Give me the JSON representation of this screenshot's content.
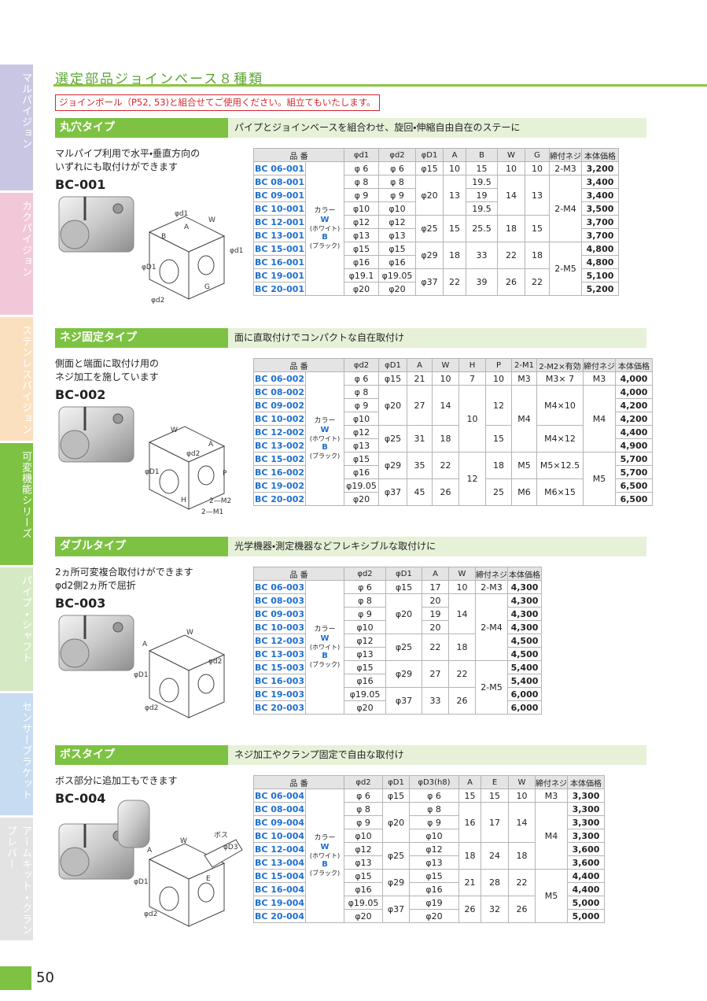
{
  "sidebar": [
    "マルパイジョン",
    "カクパイジョン",
    "ステンレスパイジョン",
    "可変機能シリーズ",
    "パイプ・シャフト",
    "センサーブラケット",
    "アームキット・クランプレバー"
  ],
  "heading": "選定部品ジョインベース８種類",
  "notice": "ジョインボール（P52, 53)と組合せてご使用ください。組立てもいたします。",
  "sections": [
    {
      "title": "丸穴タイプ",
      "subtitle": "パイプとジョインベースを組合わせ、旋回・伸縮自由自在のステーに",
      "description": [
        "マルパイプ利用で水平・垂直方向の",
        "いずれにも取付けができます"
      ],
      "model": "BC-001",
      "diagram_labels": [
        "φd1",
        "W",
        "A",
        "B",
        "φd1",
        "φD1",
        "G",
        "φd2"
      ],
      "table": {
        "headers": [
          "品 番",
          "φd1",
          "φd2",
          "φD1",
          "A",
          "B",
          "W",
          "G",
          "締付ネジ",
          "本体価格"
        ],
        "rows": [
          [
            "BC 06-001",
            {
              "label": "カラー",
              "white_code": "W",
              "white_name": "(ホワイト)",
              "black_code": "B",
              "black_name": "(ブラック)"
            },
            "φ 6",
            "φ 6",
            "φ15",
            "10",
            "15",
            "10",
            "10",
            "2-M3",
            "3,200"
          ],
          [
            "BC 08-001",
            null,
            "φ 8",
            "φ 8",
            "φ20",
            "13",
            "19.5",
            "14",
            "13",
            "2-M4",
            "3,400"
          ],
          [
            "BC 09-001",
            null,
            "φ 9",
            "φ 9",
            null,
            null,
            "19",
            null,
            null,
            null,
            "3,400"
          ],
          [
            "BC 10-001",
            null,
            "φ10",
            "φ10",
            null,
            null,
            "19.5",
            null,
            null,
            null,
            "3,500"
          ],
          [
            "BC 12-001",
            null,
            "φ12",
            "φ12",
            "φ25",
            "15",
            "25.5",
            "18",
            "15",
            null,
            "3,700"
          ],
          [
            "BC 13-001",
            null,
            "φ13",
            "φ13",
            null,
            null,
            null,
            null,
            null,
            null,
            "3,700"
          ],
          [
            "BC 15-001",
            null,
            "φ15",
            "φ15",
            "φ29",
            "18",
            "33",
            "22",
            "18",
            "2-M5",
            "4,800"
          ],
          [
            "BC 16-001",
            null,
            "φ16",
            "φ16",
            null,
            null,
            null,
            null,
            null,
            null,
            "4,800"
          ],
          [
            "BC 19-001",
            null,
            "φ19.1",
            "φ19.05",
            "φ37",
            "22",
            "39",
            "26",
            "22",
            null,
            "5,100"
          ],
          [
            "BC 20-001",
            null,
            "φ20",
            "φ20",
            null,
            null,
            null,
            null,
            null,
            null,
            "5,200"
          ]
        ]
      }
    },
    {
      "title": "ネジ固定タイプ",
      "subtitle": "面に直取付けでコンパクトな自在取付け",
      "description": [
        "側面と端面に取付け用の",
        "ネジ加工を施しています"
      ],
      "model": "BC-002",
      "diagram_labels": [
        "W",
        "A",
        "φd2",
        "φD1",
        "P",
        "H",
        "2—M2",
        "2—M1"
      ],
      "table": {
        "headers": [
          "品 番",
          "φd2",
          "φD1",
          "A",
          "W",
          "H",
          "P",
          "2-M1",
          "2-M2×有効",
          "締付ネジ",
          "本体価格"
        ],
        "rows": [
          [
            "BC 06-002",
            {
              "label": "カラー",
              "white_code": "W",
              "white_name": "(ホワイト)",
              "black_code": "B",
              "black_name": "(ブラック)"
            },
            "φ 6",
            "φ15",
            "21",
            "10",
            "7",
            "10",
            "M3",
            "M3× 7",
            "M3",
            "4,000"
          ],
          [
            "BC 08-002",
            null,
            "φ 8",
            "φ20",
            "27",
            "14",
            "10",
            "12",
            "M4",
            "M4×10",
            "M4",
            "4,000"
          ],
          [
            "BC 09-002",
            null,
            "φ 9",
            null,
            null,
            null,
            null,
            null,
            null,
            null,
            null,
            "4,200"
          ],
          [
            "BC 10-002",
            null,
            "φ10",
            null,
            null,
            null,
            null,
            null,
            null,
            null,
            null,
            "4,200"
          ],
          [
            "BC 12-002",
            null,
            "φ12",
            "φ25",
            "31",
            "18",
            null,
            "15",
            null,
            "M4×12",
            null,
            "4,400"
          ],
          [
            "BC 13-002",
            null,
            "φ13",
            null,
            null,
            null,
            null,
            null,
            null,
            null,
            null,
            "4,900"
          ],
          [
            "BC 15-002",
            null,
            "φ15",
            "φ29",
            "35",
            "22",
            "12",
            "18",
            "M5",
            "M5×12.5",
            "M5",
            "5,700"
          ],
          [
            "BC 16-002",
            null,
            "φ16",
            null,
            null,
            null,
            null,
            null,
            null,
            null,
            null,
            "5,700"
          ],
          [
            "BC 19-002",
            null,
            "φ19.05",
            "φ37",
            "45",
            "26",
            null,
            "25",
            "M6",
            "M6×15",
            null,
            "6,500"
          ],
          [
            "BC 20-002",
            null,
            "φ20",
            null,
            null,
            null,
            null,
            null,
            null,
            null,
            null,
            "6,500"
          ]
        ]
      }
    },
    {
      "title": "ダブルタイプ",
      "subtitle": "光学機器・測定機器などフレキシブルな取付けに",
      "description": [
        "2ヵ所可変複合取付けができます",
        "φd2側2ヵ所で屈折"
      ],
      "model": "BC-003",
      "diagram_labels": [
        "W",
        "A",
        "φd2",
        "φD1",
        "φd2"
      ],
      "table": {
        "headers": [
          "品 番",
          "φd2",
          "φD1",
          "A",
          "W",
          "締付ネジ",
          "本体価格"
        ],
        "rows": [
          [
            "BC 06-003",
            {
              "label": "カラー",
              "white_code": "W",
              "white_name": "(ホワイト)",
              "black_code": "B",
              "black_name": "(ブラック)"
            },
            "φ 6",
            "φ15",
            "17",
            "10",
            "2-M3",
            "4,300"
          ],
          [
            "BC 08-003",
            null,
            "φ 8",
            "φ20",
            "20",
            "14",
            "2-M4",
            "4,300"
          ],
          [
            "BC 09-003",
            null,
            "φ 9",
            null,
            "19",
            null,
            null,
            "4,300"
          ],
          [
            "BC 10-003",
            null,
            "φ10",
            null,
            "20",
            null,
            null,
            "4,300"
          ],
          [
            "BC 12-003",
            null,
            "φ12",
            "φ25",
            "22",
            "18",
            null,
            "4,500"
          ],
          [
            "BC 13-003",
            null,
            "φ13",
            null,
            null,
            null,
            null,
            "4,500"
          ],
          [
            "BC 15-003",
            null,
            "φ15",
            "φ29",
            "27",
            "22",
            "2-M5",
            "5,400"
          ],
          [
            "BC 16-003",
            null,
            "φ16",
            null,
            null,
            null,
            null,
            "5,400"
          ],
          [
            "BC 19-003",
            null,
            "φ19.05",
            "φ37",
            "33",
            "26",
            null,
            "6,000"
          ],
          [
            "BC 20-003",
            null,
            "φ20",
            null,
            null,
            null,
            null,
            "6,000"
          ]
        ]
      }
    },
    {
      "title": "ボスタイプ",
      "subtitle": "ネジ加工やクランプ固定で自由な取付け",
      "description": [
        "ボス部分に追加工もできます"
      ],
      "model": "BC-004",
      "diagram_labels": [
        "ボス",
        "W",
        "φD3",
        "A",
        "E",
        "φD1",
        "φd2"
      ],
      "table": {
        "headers": [
          "品 番",
          "φd2",
          "φD1",
          "φD3(h8)",
          "A",
          "E",
          "W",
          "締付ネジ",
          "本体価格"
        ],
        "rows": [
          [
            "BC 06-004",
            {
              "label": "カラー",
              "white_code": "W",
              "white_name": "(ホワイト)",
              "black_code": "B",
              "black_name": "(ブラック)"
            },
            "φ 6",
            "φ15",
            "φ 6",
            "15",
            "15",
            "10",
            "M3",
            "3,300"
          ],
          [
            "BC 08-004",
            null,
            "φ 8",
            "φ20",
            "φ 8",
            "16",
            "17",
            "14",
            "M4",
            "3,300"
          ],
          [
            "BC 09-004",
            null,
            "φ 9",
            null,
            "φ 9",
            null,
            null,
            null,
            null,
            "3,300"
          ],
          [
            "BC 10-004",
            null,
            "φ10",
            null,
            "φ10",
            null,
            null,
            null,
            null,
            "3,300"
          ],
          [
            "BC 12-004",
            null,
            "φ12",
            "φ25",
            "φ12",
            "18",
            "24",
            "18",
            null,
            "3,600"
          ],
          [
            "BC 13-004",
            null,
            "φ13",
            null,
            "φ13",
            null,
            null,
            null,
            null,
            "3,600"
          ],
          [
            "BC 15-004",
            null,
            "φ15",
            "φ29",
            "φ15",
            "21",
            "28",
            "22",
            "M5",
            "4,400"
          ],
          [
            "BC 16-004",
            null,
            "φ16",
            null,
            "φ16",
            null,
            null,
            null,
            null,
            "4,400"
          ],
          [
            "BC 19-004",
            null,
            "φ19.05",
            "φ37",
            "φ19",
            "26",
            "32",
            "26",
            null,
            "5,000"
          ],
          [
            "BC 20-004",
            null,
            "φ20",
            null,
            "φ20",
            null,
            null,
            null,
            null,
            "5,000"
          ]
        ]
      }
    }
  ],
  "page_number": "50"
}
